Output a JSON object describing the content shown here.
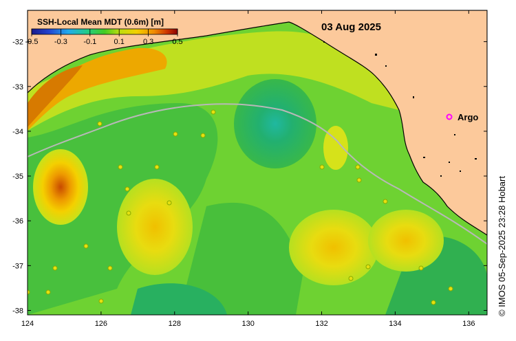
{
  "map": {
    "date": "03 Aug 2025",
    "legend": {
      "title": "SSH-Local Mean MDT (0.6m) [m]",
      "ticks": [
        "-0.5",
        "-0.3",
        "-0.1",
        "0.1",
        "0.3",
        "0.5"
      ],
      "range": [
        -0.5,
        0.5
      ],
      "colors": [
        "#1a1a8c",
        "#2244d0",
        "#22aaee",
        "#22cc88",
        "#44cc22",
        "#bbdd11",
        "#f2d000",
        "#f08a00",
        "#cc3300",
        "#8a0000"
      ]
    },
    "y_axis": {
      "labels": [
        "-32",
        "-33",
        "-34",
        "-35",
        "-36",
        "-37",
        "-38"
      ],
      "values": [
        -32,
        -33,
        -34,
        -35,
        -36,
        -37,
        -38
      ]
    },
    "x_axis": {
      "labels": [
        "124",
        "126",
        "128",
        "130",
        "132",
        "134",
        "136"
      ],
      "values": [
        124,
        126,
        128,
        130,
        132,
        134,
        136
      ]
    },
    "lon_range": [
      124,
      136.5
    ],
    "lat_range": [
      -31.3,
      -38.1
    ],
    "argo": {
      "marker": "o",
      "label": "Argo",
      "color": "#ff00ff"
    },
    "land_color": "#fcc99b",
    "credit": "© IMOS 05-Sep-2025 23:28 Hobart"
  }
}
